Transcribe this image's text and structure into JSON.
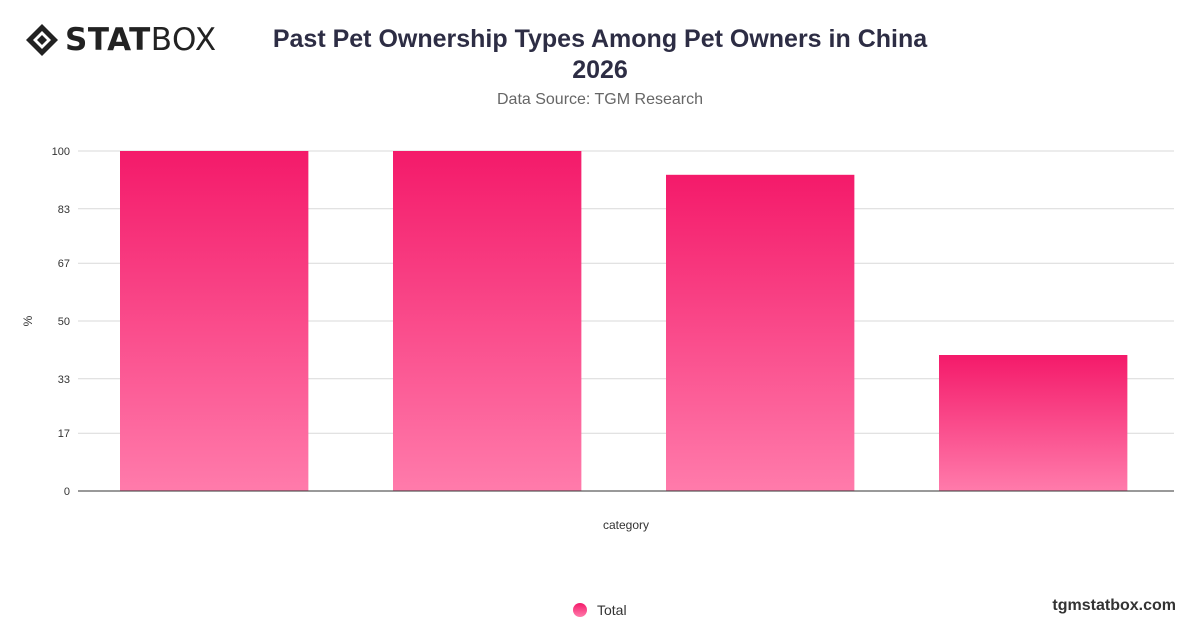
{
  "header": {
    "logo_bold": "STAT",
    "logo_light": "BOX",
    "title_line1": "Past Pet Ownership Types Among Pet Owners in China",
    "title_line2": "2026",
    "subtitle": "Data Source: TGM Research"
  },
  "footer": {
    "site": "tgmstatbox.com"
  },
  "colors": {
    "bar_top": "#f41a6a",
    "bar_bottom": "#ff7bab",
    "grid": "#d9d9d9",
    "axis": "#333333"
  },
  "chart_data": {
    "type": "bar",
    "categories": [
      "",
      "",
      "",
      ""
    ],
    "series": [
      {
        "name": "Total",
        "values": [
          100,
          100,
          93,
          40
        ]
      }
    ],
    "xlabel": "category",
    "ylabel": "%",
    "ylim": [
      0,
      100
    ],
    "yticks": [
      "0",
      "17",
      "33",
      "50",
      "67",
      "83",
      "100"
    ],
    "grid": true,
    "legend": "bottom-center"
  }
}
